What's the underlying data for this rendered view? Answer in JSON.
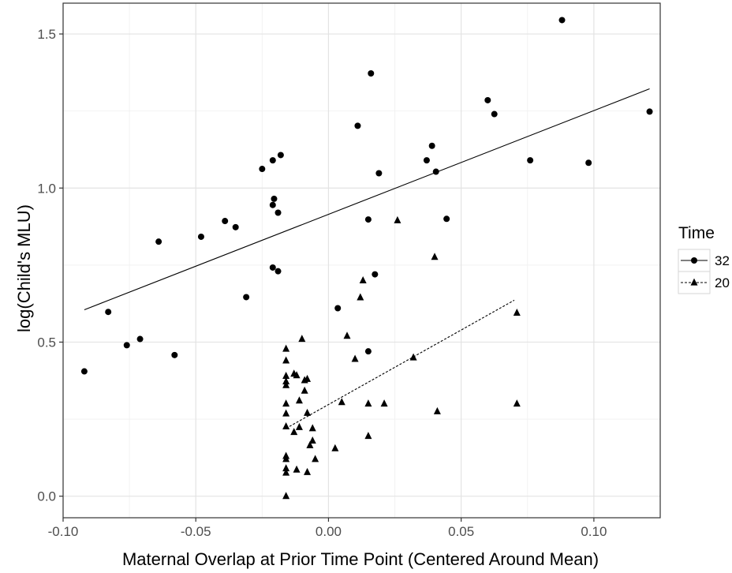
{
  "chart_data": {
    "type": "scatter",
    "title": "",
    "xlabel": "Maternal Overlap at Prior Time Point (Centered Around Mean)",
    "ylabel": "log(Child's MLU)",
    "xlim": [
      -0.1,
      0.125
    ],
    "ylim": [
      -0.07,
      1.6
    ],
    "x_ticks": [
      -0.1,
      -0.05,
      0.0,
      0.05,
      0.1
    ],
    "x_tick_labels": [
      "-0.10",
      "-0.05",
      "0.00",
      "0.05",
      "0.10"
    ],
    "y_ticks": [
      0.0,
      0.5,
      1.0,
      1.5
    ],
    "y_tick_labels": [
      "0.0",
      "0.5",
      "1.0",
      "1.5"
    ],
    "grid": true,
    "legend": {
      "title": "Time",
      "position": "right"
    },
    "series": [
      {
        "name": "32",
        "marker": "circle",
        "line_style": "solid",
        "fit_line": {
          "x": [
            -0.092,
            0.121
          ],
          "y": [
            0.605,
            1.322
          ]
        },
        "points": [
          [
            -0.092,
            0.405
          ],
          [
            -0.083,
            0.598
          ],
          [
            -0.076,
            0.49
          ],
          [
            -0.071,
            0.51
          ],
          [
            -0.064,
            0.826
          ],
          [
            -0.058,
            0.458
          ],
          [
            -0.048,
            0.842
          ],
          [
            -0.039,
            0.893
          ],
          [
            -0.035,
            0.873
          ],
          [
            -0.031,
            0.646
          ],
          [
            -0.025,
            1.062
          ],
          [
            -0.021,
            0.945
          ],
          [
            -0.0205,
            0.965
          ],
          [
            -0.021,
            1.09
          ],
          [
            -0.018,
            1.107
          ],
          [
            -0.019,
            0.92
          ],
          [
            -0.021,
            0.742
          ],
          [
            -0.019,
            0.73
          ],
          [
            0.0035,
            0.61
          ],
          [
            0.011,
            1.202
          ],
          [
            0.015,
            0.898
          ],
          [
            0.016,
            1.372
          ],
          [
            0.0175,
            0.72
          ],
          [
            0.019,
            1.048
          ],
          [
            0.015,
            0.47
          ],
          [
            0.037,
            1.09
          ],
          [
            0.039,
            1.137
          ],
          [
            0.0405,
            1.053
          ],
          [
            0.0445,
            0.9
          ],
          [
            0.06,
            1.285
          ],
          [
            0.0625,
            1.24
          ],
          [
            0.076,
            1.09
          ],
          [
            0.088,
            1.545
          ],
          [
            0.098,
            1.082
          ],
          [
            0.121,
            1.248
          ]
        ]
      },
      {
        "name": "20",
        "marker": "triangle",
        "line_style": "dashed",
        "fit_line": {
          "x": [
            -0.016,
            0.07
          ],
          "y": [
            0.22,
            0.636
          ]
        },
        "points": [
          [
            -0.016,
            0.478
          ],
          [
            -0.016,
            0.44
          ],
          [
            -0.016,
            0.39
          ],
          [
            -0.016,
            0.372
          ],
          [
            -0.016,
            0.36
          ],
          [
            -0.016,
            0.3
          ],
          [
            -0.016,
            0.268
          ],
          [
            -0.016,
            0.226
          ],
          [
            -0.016,
            0.13
          ],
          [
            -0.016,
            0.12
          ],
          [
            -0.016,
            0.09
          ],
          [
            -0.016,
            0.076
          ],
          [
            -0.016,
            0.0
          ],
          [
            -0.013,
            0.397
          ],
          [
            -0.012,
            0.392
          ],
          [
            -0.013,
            0.208
          ],
          [
            -0.012,
            0.086
          ],
          [
            -0.011,
            0.31
          ],
          [
            -0.011,
            0.224
          ],
          [
            -0.01,
            0.51
          ],
          [
            -0.009,
            0.376
          ],
          [
            -0.008,
            0.38
          ],
          [
            -0.009,
            0.342
          ],
          [
            -0.008,
            0.27
          ],
          [
            -0.008,
            0.078
          ],
          [
            -0.007,
            0.165
          ],
          [
            -0.006,
            0.22
          ],
          [
            -0.006,
            0.18
          ],
          [
            -0.005,
            0.12
          ],
          [
            0.0025,
            0.155
          ],
          [
            0.005,
            0.305
          ],
          [
            0.007,
            0.52
          ],
          [
            0.01,
            0.445
          ],
          [
            0.012,
            0.645
          ],
          [
            0.013,
            0.7
          ],
          [
            0.015,
            0.3
          ],
          [
            0.015,
            0.195
          ],
          [
            0.021,
            0.3
          ],
          [
            0.026,
            0.895
          ],
          [
            0.032,
            0.45
          ],
          [
            0.04,
            0.776
          ],
          [
            0.041,
            0.275
          ],
          [
            0.071,
            0.595
          ],
          [
            0.071,
            0.3
          ]
        ]
      }
    ]
  }
}
